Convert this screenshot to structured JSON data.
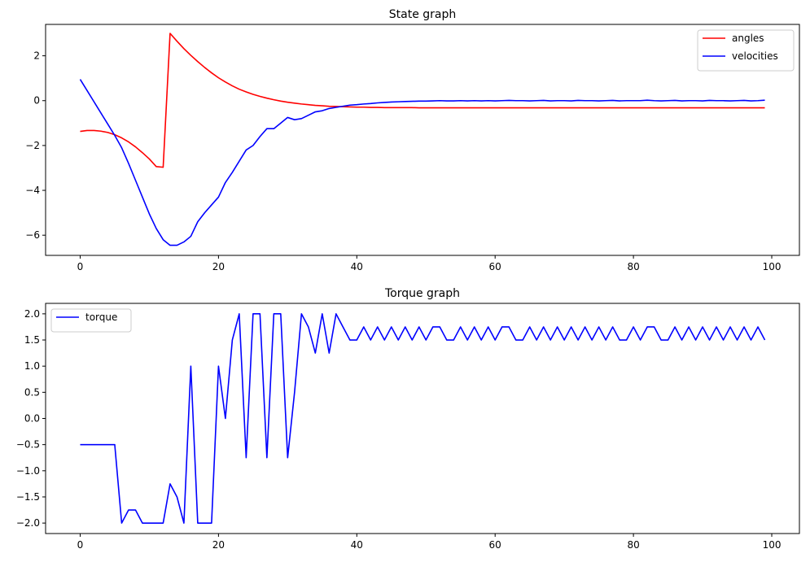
{
  "chart_data": [
    {
      "type": "line",
      "title": "State graph",
      "xlabel": "",
      "ylabel": "",
      "xlim": [
        -5,
        104
      ],
      "ylim": [
        -6.9,
        3.4
      ],
      "xticks": [
        0,
        20,
        40,
        60,
        80,
        100
      ],
      "yticks": [
        -6,
        -4,
        -2,
        0,
        2
      ],
      "grid": false,
      "legend_position": "top-right",
      "x": [
        0,
        1,
        2,
        3,
        4,
        5,
        6,
        7,
        8,
        9,
        10,
        11,
        12,
        13,
        14,
        15,
        16,
        17,
        18,
        19,
        20,
        21,
        22,
        23,
        24,
        25,
        26,
        27,
        28,
        29,
        30,
        31,
        32,
        33,
        34,
        35,
        36,
        37,
        38,
        39,
        40,
        41,
        42,
        43,
        44,
        45,
        46,
        47,
        48,
        49,
        50,
        51,
        52,
        53,
        54,
        55,
        56,
        57,
        58,
        59,
        60,
        61,
        62,
        63,
        64,
        65,
        66,
        67,
        68,
        69,
        70,
        71,
        72,
        73,
        74,
        75,
        76,
        77,
        78,
        79,
        80,
        81,
        82,
        83,
        84,
        85,
        86,
        87,
        88,
        89,
        90,
        91,
        92,
        93,
        94,
        95,
        96,
        97,
        98,
        99
      ],
      "series": [
        {
          "name": "angles",
          "color": "#ff0000",
          "values": [
            -1.37,
            -1.33,
            -1.33,
            -1.36,
            -1.42,
            -1.52,
            -1.66,
            -1.84,
            -2.06,
            -2.32,
            -2.6,
            -2.94,
            -2.97,
            3.0,
            2.65,
            2.32,
            2.02,
            1.74,
            1.48,
            1.24,
            1.02,
            0.83,
            0.66,
            0.51,
            0.39,
            0.28,
            0.19,
            0.11,
            0.04,
            -0.02,
            -0.07,
            -0.11,
            -0.15,
            -0.18,
            -0.21,
            -0.23,
            -0.25,
            -0.26,
            -0.27,
            -0.28,
            -0.29,
            -0.29,
            -0.3,
            -0.3,
            -0.31,
            -0.31,
            -0.31,
            -0.31,
            -0.31,
            -0.32,
            -0.32,
            -0.32,
            -0.32,
            -0.32,
            -0.32,
            -0.32,
            -0.32,
            -0.32,
            -0.32,
            -0.32,
            -0.32,
            -0.32,
            -0.32,
            -0.32,
            -0.32,
            -0.32,
            -0.32,
            -0.32,
            -0.32,
            -0.32,
            -0.32,
            -0.32,
            -0.32,
            -0.32,
            -0.32,
            -0.32,
            -0.32,
            -0.32,
            -0.32,
            -0.32,
            -0.32,
            -0.32,
            -0.32,
            -0.32,
            -0.32,
            -0.32,
            -0.32,
            -0.32,
            -0.32,
            -0.32,
            -0.32,
            -0.32,
            -0.32,
            -0.32,
            -0.32,
            -0.32,
            -0.32,
            -0.32,
            -0.32,
            -0.32
          ]
        },
        {
          "name": "velocities",
          "color": "#0000ff",
          "values": [
            0.95,
            0.45,
            -0.05,
            -0.55,
            -1.05,
            -1.55,
            -2.1,
            -2.8,
            -3.55,
            -4.3,
            -5.05,
            -5.7,
            -6.2,
            -6.45,
            -6.45,
            -6.3,
            -6.05,
            -5.4,
            -5.0,
            -4.65,
            -4.3,
            -3.65,
            -3.2,
            -2.7,
            -2.2,
            -2.0,
            -1.6,
            -1.25,
            -1.25,
            -1.0,
            -0.75,
            -0.85,
            -0.8,
            -0.65,
            -0.5,
            -0.45,
            -0.35,
            -0.3,
            -0.25,
            -0.2,
            -0.18,
            -0.15,
            -0.13,
            -0.1,
            -0.08,
            -0.06,
            -0.05,
            -0.04,
            -0.03,
            -0.02,
            -0.02,
            -0.01,
            0.0,
            -0.01,
            -0.01,
            0.0,
            -0.01,
            0.0,
            -0.01,
            0.0,
            -0.01,
            0.0,
            0.01,
            0.0,
            0.0,
            -0.01,
            0.0,
            0.01,
            -0.01,
            0.0,
            0.0,
            -0.01,
            0.01,
            0.0,
            0.0,
            -0.01,
            0.0,
            0.01,
            -0.01,
            0.0,
            0.0,
            0.0,
            0.02,
            0.0,
            -0.01,
            0.0,
            0.01,
            -0.01,
            0.0,
            0.0,
            -0.01,
            0.01,
            0.0,
            0.0,
            -0.01,
            0.0,
            0.01,
            -0.01,
            0.0,
            0.02
          ]
        }
      ]
    },
    {
      "type": "line",
      "title": "Torque graph",
      "xlabel": "",
      "ylabel": "",
      "xlim": [
        -5,
        104
      ],
      "ylim": [
        -2.2,
        2.2
      ],
      "xticks": [
        0,
        20,
        40,
        60,
        80,
        100
      ],
      "yticks": [
        -2.0,
        -1.5,
        -1.0,
        -0.5,
        0.0,
        0.5,
        1.0,
        1.5,
        2.0
      ],
      "ytick_labels": [
        "−2.0",
        "−1.5",
        "−1.0",
        "−0.5",
        "0.0",
        "0.5",
        "1.0",
        "1.5",
        "2.0"
      ],
      "grid": false,
      "legend_position": "top-left",
      "x": [
        0,
        1,
        2,
        3,
        4,
        5,
        6,
        7,
        8,
        9,
        10,
        11,
        12,
        13,
        14,
        15,
        16,
        17,
        18,
        19,
        20,
        21,
        22,
        23,
        24,
        25,
        26,
        27,
        28,
        29,
        30,
        31,
        32,
        33,
        34,
        35,
        36,
        37,
        38,
        39,
        40,
        41,
        42,
        43,
        44,
        45,
        46,
        47,
        48,
        49,
        50,
        51,
        52,
        53,
        54,
        55,
        56,
        57,
        58,
        59,
        60,
        61,
        62,
        63,
        64,
        65,
        66,
        67,
        68,
        69,
        70,
        71,
        72,
        73,
        74,
        75,
        76,
        77,
        78,
        79,
        80,
        81,
        82,
        83,
        84,
        85,
        86,
        87,
        88,
        89,
        90,
        91,
        92,
        93,
        94,
        95,
        96,
        97,
        98,
        99
      ],
      "series": [
        {
          "name": "torque",
          "color": "#0000ff",
          "values": [
            -0.5,
            -0.5,
            -0.5,
            -0.5,
            -0.5,
            -0.5,
            -2.0,
            -1.75,
            -1.75,
            -2.0,
            -2.0,
            -2.0,
            -2.0,
            -1.25,
            -1.5,
            -2.0,
            1.0,
            -2.0,
            -2.0,
            -2.0,
            1.0,
            0.0,
            1.5,
            2.0,
            -0.75,
            2.0,
            2.0,
            -0.75,
            2.0,
            2.0,
            -0.75,
            0.5,
            2.0,
            1.75,
            1.25,
            2.0,
            1.25,
            2.0,
            1.75,
            1.5,
            1.5,
            1.75,
            1.5,
            1.75,
            1.5,
            1.75,
            1.5,
            1.75,
            1.5,
            1.75,
            1.5,
            1.75,
            1.75,
            1.5,
            1.5,
            1.75,
            1.5,
            1.75,
            1.5,
            1.75,
            1.5,
            1.75,
            1.75,
            1.5,
            1.5,
            1.75,
            1.5,
            1.75,
            1.5,
            1.75,
            1.5,
            1.75,
            1.5,
            1.75,
            1.5,
            1.75,
            1.5,
            1.75,
            1.5,
            1.5,
            1.75,
            1.5,
            1.75,
            1.75,
            1.5,
            1.5,
            1.75,
            1.5,
            1.75,
            1.5,
            1.75,
            1.5,
            1.75,
            1.5,
            1.75,
            1.5,
            1.75,
            1.5,
            1.75,
            1.5
          ]
        }
      ]
    }
  ]
}
